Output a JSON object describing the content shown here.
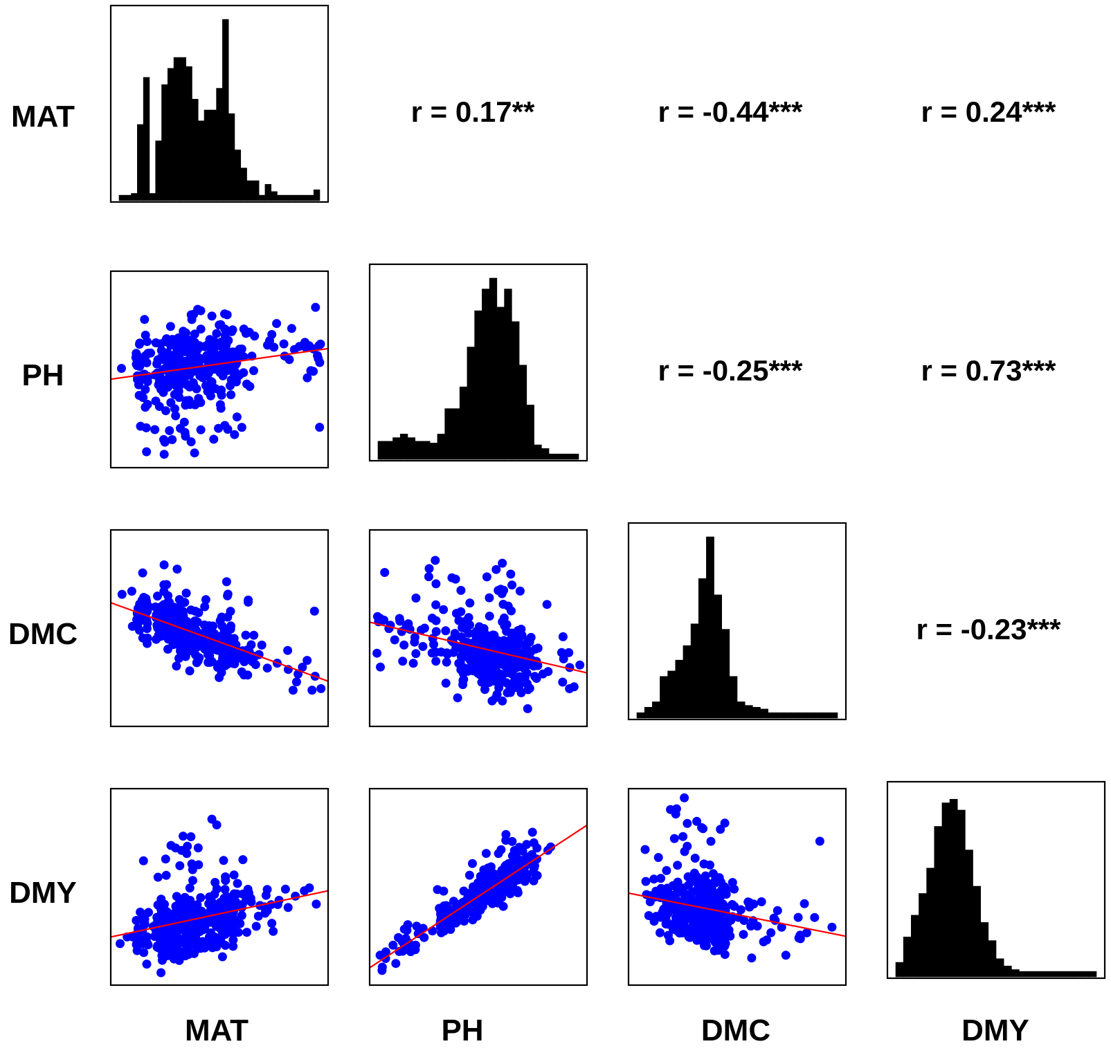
{
  "chart_data": {
    "type": "scatter_matrix",
    "title": "",
    "variables": [
      "MAT",
      "PH",
      "DMC",
      "DMY"
    ],
    "row_labels": [
      "MAT",
      "PH",
      "DMC",
      "DMY"
    ],
    "column_labels": [
      "MAT",
      "PH",
      "DMC",
      "DMY"
    ],
    "diagonal": "histogram",
    "lower": "scatter with linear fit (red)",
    "upper": "Pearson correlation coefficient",
    "correlations": [
      {
        "row": 0,
        "col": 1,
        "pair": [
          "MAT",
          "PH"
        ],
        "r": 0.17,
        "label": "r = 0.17**"
      },
      {
        "row": 0,
        "col": 2,
        "pair": [
          "MAT",
          "DMC"
        ],
        "r": -0.44,
        "label": "r = -0.44***"
      },
      {
        "row": 0,
        "col": 3,
        "pair": [
          "MAT",
          "DMY"
        ],
        "r": 0.24,
        "label": "r = 0.24***"
      },
      {
        "row": 1,
        "col": 2,
        "pair": [
          "PH",
          "DMC"
        ],
        "r": -0.25,
        "label": "r = -0.25***"
      },
      {
        "row": 1,
        "col": 3,
        "pair": [
          "PH",
          "DMY"
        ],
        "r": 0.73,
        "label": "r = 0.73***"
      },
      {
        "row": 2,
        "col": 3,
        "pair": [
          "DMC",
          "DMY"
        ],
        "r": -0.23,
        "label": "r = -0.23***"
      }
    ],
    "histograms": {
      "MAT": [
        0.03,
        0.03,
        0.04,
        0.42,
        0.68,
        0.04,
        0.33,
        0.64,
        0.73,
        0.79,
        0.79,
        0.74,
        0.56,
        0.44,
        0.5,
        0.5,
        0.62,
        1.0,
        0.48,
        0.28,
        0.18,
        0.11,
        0.11,
        0.03,
        0.09,
        0.05,
        0.03,
        0.03,
        0.03,
        0.03,
        0.03,
        0.03,
        0.06
      ],
      "PH": [
        0.1,
        0.1,
        0.12,
        0.14,
        0.12,
        0.1,
        0.1,
        0.09,
        0.14,
        0.28,
        0.28,
        0.4,
        0.62,
        0.82,
        0.94,
        1.0,
        0.84,
        0.94,
        0.76,
        0.52,
        0.3,
        0.08,
        0.06,
        0.03,
        0.03,
        0.03,
        0.03
      ],
      "DMC": [
        0.03,
        0.06,
        0.09,
        0.23,
        0.26,
        0.32,
        0.4,
        0.52,
        0.77,
        1.0,
        0.68,
        0.49,
        0.23,
        0.09,
        0.07,
        0.06,
        0.05,
        0.03,
        0.03,
        0.03,
        0.03,
        0.03,
        0.03,
        0.03,
        0.03,
        0.03
      ],
      "DMY": [
        0.08,
        0.22,
        0.34,
        0.46,
        0.6,
        0.83,
        0.96,
        0.98,
        0.92,
        0.7,
        0.5,
        0.3,
        0.2,
        0.1,
        0.06,
        0.04,
        0.03,
        0.03,
        0.03,
        0.03,
        0.03,
        0.03,
        0.03,
        0.03,
        0.03,
        0.03
      ]
    },
    "point_color": "#0000ff",
    "fit_line_color": "#ff0000",
    "bar_color": "#000000",
    "n_points_per_scatter": 380,
    "axes_ticks": false,
    "grid": false,
    "legend": "none"
  }
}
